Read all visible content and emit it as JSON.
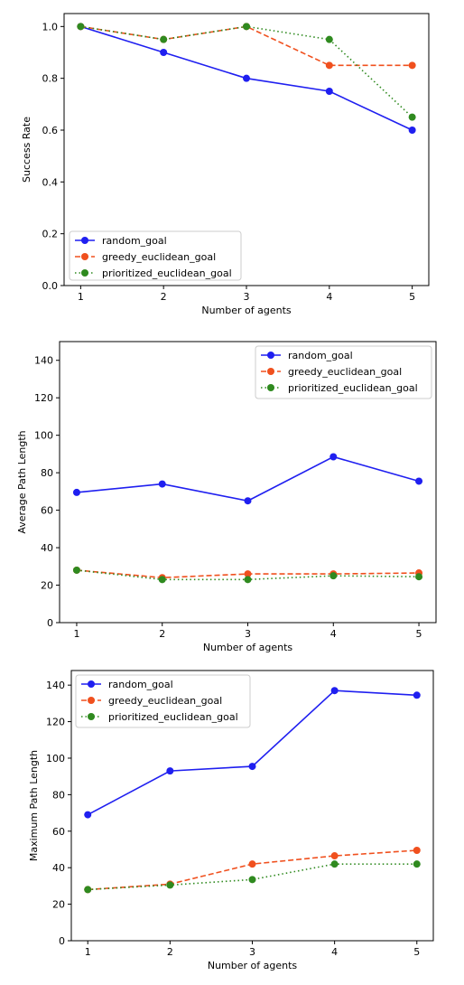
{
  "chart_data": [
    {
      "type": "line",
      "xlabel": "Number of agents",
      "ylabel": "Success Rate",
      "x": [
        1,
        2,
        3,
        4,
        5
      ],
      "xticks": [
        "1",
        "2",
        "3",
        "4",
        "5"
      ],
      "ylim": [
        0,
        1.05
      ],
      "yticks": [
        "0.0",
        "0.2",
        "0.4",
        "0.6",
        "0.8",
        "1.0"
      ],
      "ytick_values": [
        0,
        0.2,
        0.4,
        0.6,
        0.8,
        1.0
      ],
      "legend_position": "lower-left",
      "series": [
        {
          "name": "random_goal",
          "values": [
            1.0,
            0.9,
            0.8,
            0.75,
            0.6
          ],
          "color": "#1f1ff0",
          "style": "solid"
        },
        {
          "name": "greedy_euclidean_goal",
          "values": [
            1.0,
            0.95,
            1.0,
            0.85,
            0.85
          ],
          "color": "#f0501e",
          "style": "dashed"
        },
        {
          "name": "prioritized_euclidean_goal",
          "values": [
            1.0,
            0.95,
            1.0,
            0.95,
            0.65
          ],
          "color": "#2f8a1f",
          "style": "dotted"
        }
      ]
    },
    {
      "type": "line",
      "xlabel": "Number of agents",
      "ylabel": "Average Path Length",
      "x": [
        1,
        2,
        3,
        4,
        5
      ],
      "xticks": [
        "1",
        "2",
        "3",
        "4",
        "5"
      ],
      "ylim": [
        0,
        150
      ],
      "yticks": [
        "0",
        "20",
        "40",
        "60",
        "80",
        "100",
        "120",
        "140"
      ],
      "ytick_values": [
        0,
        20,
        40,
        60,
        80,
        100,
        120,
        140
      ],
      "legend_position": "upper-right",
      "series": [
        {
          "name": "random_goal",
          "values": [
            69.5,
            74,
            65,
            88.5,
            75.5
          ],
          "color": "#1f1ff0",
          "style": "solid"
        },
        {
          "name": "greedy_euclidean_goal",
          "values": [
            28,
            24,
            26,
            26,
            26.5
          ],
          "color": "#f0501e",
          "style": "dashed"
        },
        {
          "name": "prioritized_euclidean_goal",
          "values": [
            28,
            23,
            23,
            25,
            24.5
          ],
          "color": "#2f8a1f",
          "style": "dotted"
        }
      ]
    },
    {
      "type": "line",
      "xlabel": "Number of agents",
      "ylabel": "Maximum Path Length",
      "x": [
        1,
        2,
        3,
        4,
        5
      ],
      "xticks": [
        "1",
        "2",
        "3",
        "4",
        "5"
      ],
      "ylim": [
        0,
        148
      ],
      "yticks": [
        "0",
        "20",
        "40",
        "60",
        "80",
        "100",
        "120",
        "140"
      ],
      "ytick_values": [
        0,
        20,
        40,
        60,
        80,
        100,
        120,
        140
      ],
      "legend_position": "upper-left",
      "series": [
        {
          "name": "random_goal",
          "values": [
            69,
            93,
            95.5,
            137,
            134.5
          ],
          "color": "#1f1ff0",
          "style": "solid"
        },
        {
          "name": "greedy_euclidean_goal",
          "values": [
            28,
            31,
            42,
            46.5,
            49.5
          ],
          "color": "#f0501e",
          "style": "dashed"
        },
        {
          "name": "prioritized_euclidean_goal",
          "values": [
            28,
            30.5,
            33.5,
            42,
            42
          ],
          "color": "#2f8a1f",
          "style": "dotted"
        }
      ]
    }
  ]
}
